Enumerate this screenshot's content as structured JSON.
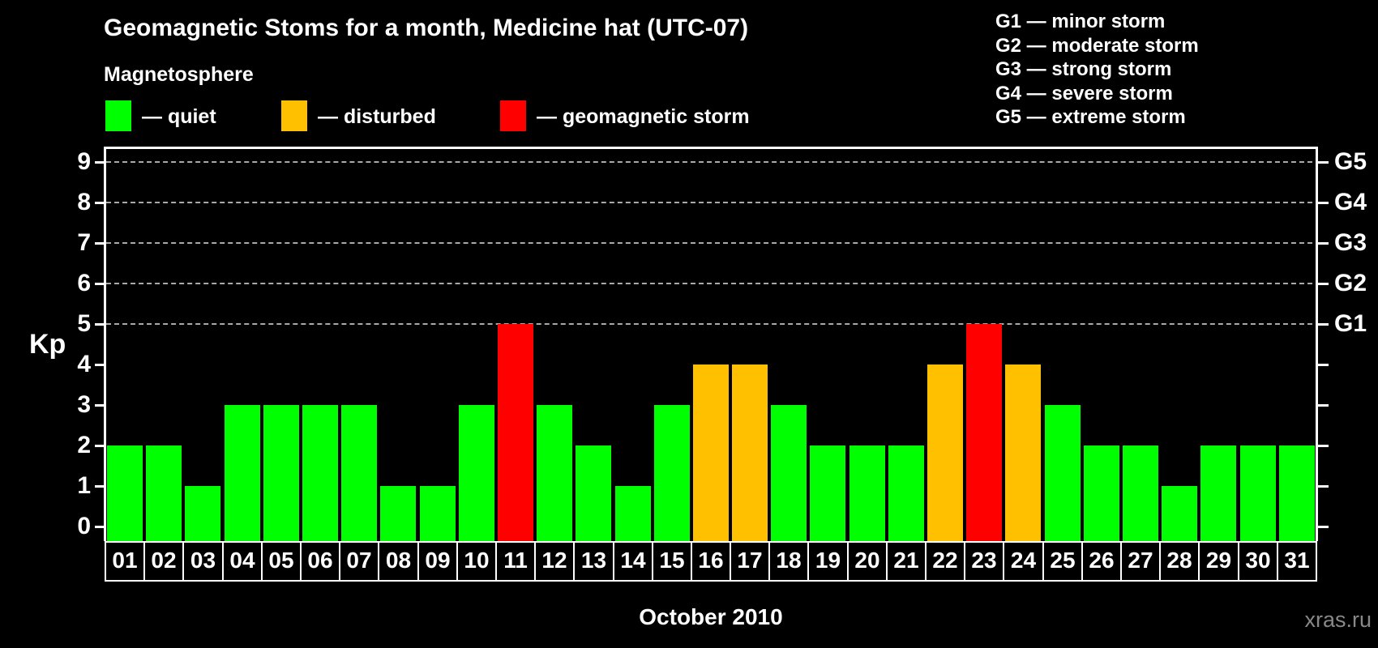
{
  "title": "Geomagnetic Stoms for a month, Medicine hat (UTC-07)",
  "legend": {
    "heading": "Magnetosphere",
    "items": [
      {
        "key": "quiet",
        "label": "— quiet",
        "color": "#00ff00"
      },
      {
        "key": "disturbed",
        "label": "— disturbed",
        "color": "#ffc000"
      },
      {
        "key": "storm",
        "label": "— geomagnetic storm",
        "color": "#ff0000"
      }
    ]
  },
  "g_scale_legend": [
    "G1 — minor storm",
    "G2 — moderate storm",
    "G3 — strong storm",
    "G4 — severe storm",
    "G5 — extreme storm"
  ],
  "axes": {
    "y_left_label": "Kp",
    "y_ticks": [
      0,
      1,
      2,
      3,
      4,
      5,
      6,
      7,
      8,
      9
    ],
    "y_right_labels": [
      {
        "value": 5,
        "label": "G1"
      },
      {
        "value": 6,
        "label": "G2"
      },
      {
        "value": 7,
        "label": "G3"
      },
      {
        "value": 8,
        "label": "G4"
      },
      {
        "value": 9,
        "label": "G5"
      }
    ],
    "gridline_values": [
      5,
      6,
      7,
      8,
      9
    ]
  },
  "x_axis_label": "October 2010",
  "watermark": "xras.ru",
  "chart_data": {
    "type": "bar",
    "title": "Geomagnetic Stoms for a month, Medicine hat (UTC-07)",
    "xlabel": "October 2010",
    "ylabel": "Kp",
    "ylim": [
      0,
      9
    ],
    "grid": "horizontal dashed lines at Kp 5-9 (G1-G5)",
    "legend_position": "top-left",
    "categories": [
      "01",
      "02",
      "03",
      "04",
      "05",
      "06",
      "07",
      "08",
      "09",
      "10",
      "11",
      "12",
      "13",
      "14",
      "15",
      "16",
      "17",
      "18",
      "19",
      "20",
      "21",
      "22",
      "23",
      "24",
      "25",
      "26",
      "27",
      "28",
      "29",
      "30",
      "31"
    ],
    "values": [
      2,
      2,
      1,
      3,
      3,
      3,
      3,
      1,
      1,
      3,
      5,
      3,
      2,
      1,
      3,
      4,
      4,
      3,
      2,
      2,
      2,
      4,
      5,
      4,
      3,
      2,
      2,
      1,
      2,
      2,
      2
    ],
    "status": [
      "quiet",
      "quiet",
      "quiet",
      "quiet",
      "quiet",
      "quiet",
      "quiet",
      "quiet",
      "quiet",
      "quiet",
      "storm",
      "quiet",
      "quiet",
      "quiet",
      "quiet",
      "disturbed",
      "disturbed",
      "quiet",
      "quiet",
      "quiet",
      "quiet",
      "disturbed",
      "storm",
      "disturbed",
      "quiet",
      "quiet",
      "quiet",
      "quiet",
      "quiet",
      "quiet",
      "quiet"
    ],
    "colors": {
      "quiet": "#00ff00",
      "disturbed": "#ffc000",
      "storm": "#ff0000"
    }
  }
}
